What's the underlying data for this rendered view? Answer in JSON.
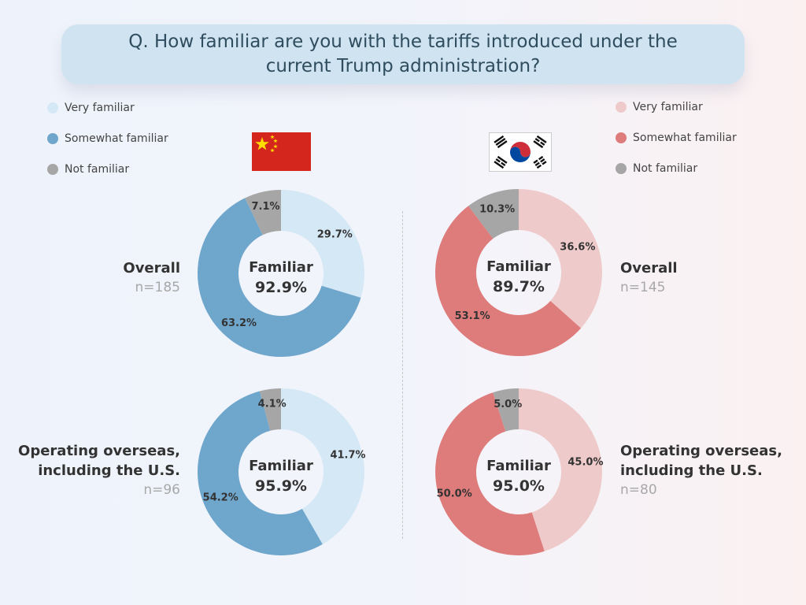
{
  "title": "Q. How familiar are you with the tariffs introduced under the current Trump administration?",
  "center_word": "Familiar",
  "legend_left": [
    {
      "label": "Very familiar",
      "color": "#d5e8f5"
    },
    {
      "label": "Somewhat familiar",
      "color": "#6fa6cc"
    },
    {
      "label": "Not familiar",
      "color": "#a6a6a6"
    }
  ],
  "legend_right": [
    {
      "label": "Very familiar",
      "color": "#efcaca"
    },
    {
      "label": "Somewhat familiar",
      "color": "#de7b7b"
    },
    {
      "label": "Not familiar",
      "color": "#a6a6a6"
    }
  ],
  "flags": {
    "left": {
      "name": "china-flag-icon",
      "color": "#d5261e",
      "star": "#ffde00"
    },
    "right": {
      "name": "korea-flag-icon",
      "color": "#ffffff",
      "red": "#cd2e3a",
      "blue": "#0047a0"
    }
  },
  "rows": {
    "left_overall": {
      "label_lines": [
        "Overall"
      ],
      "n": "n=185"
    },
    "right_overall": {
      "label_lines": [
        "Overall"
      ],
      "n": "n=145"
    },
    "left_overseas": {
      "label_lines": [
        "Operating overseas,",
        "including the U.S."
      ],
      "n": "n=96"
    },
    "right_overseas": {
      "label_lines": [
        "Operating overseas,",
        "including the U.S."
      ],
      "n": "n=80"
    }
  },
  "chart_data": [
    {
      "type": "pie",
      "name": "China - Overall",
      "categories": [
        "Very familiar",
        "Somewhat familiar",
        "Not familiar"
      ],
      "values": [
        29.7,
        63.2,
        7.1
      ],
      "labels": [
        "29.7%",
        "63.2%",
        "7.1%"
      ],
      "colors": [
        "#d5e8f5",
        "#6fa6cc",
        "#a6a6a6"
      ],
      "center_value": "92.9%"
    },
    {
      "type": "pie",
      "name": "Korea - Overall",
      "categories": [
        "Very familiar",
        "Somewhat familiar",
        "Not familiar"
      ],
      "values": [
        36.6,
        53.1,
        10.3
      ],
      "labels": [
        "36.6%",
        "53.1%",
        "10.3%"
      ],
      "colors": [
        "#efcaca",
        "#de7b7b",
        "#a6a6a6"
      ],
      "center_value": "89.7%"
    },
    {
      "type": "pie",
      "name": "China - Operating overseas, including the U.S.",
      "categories": [
        "Very familiar",
        "Somewhat familiar",
        "Not familiar"
      ],
      "values": [
        41.7,
        54.2,
        4.1
      ],
      "labels": [
        "41.7%",
        "54.2%",
        "4.1%"
      ],
      "colors": [
        "#d5e8f5",
        "#6fa6cc",
        "#a6a6a6"
      ],
      "center_value": "95.9%"
    },
    {
      "type": "pie",
      "name": "Korea - Operating overseas, including the U.S.",
      "categories": [
        "Very familiar",
        "Somewhat familiar",
        "Not familiar"
      ],
      "values": [
        45.0,
        50.0,
        5.0
      ],
      "labels": [
        "45.0%",
        "50.0%",
        "5.0%"
      ],
      "colors": [
        "#efcaca",
        "#de7b7b",
        "#a6a6a6"
      ],
      "center_value": "95.0%"
    }
  ]
}
